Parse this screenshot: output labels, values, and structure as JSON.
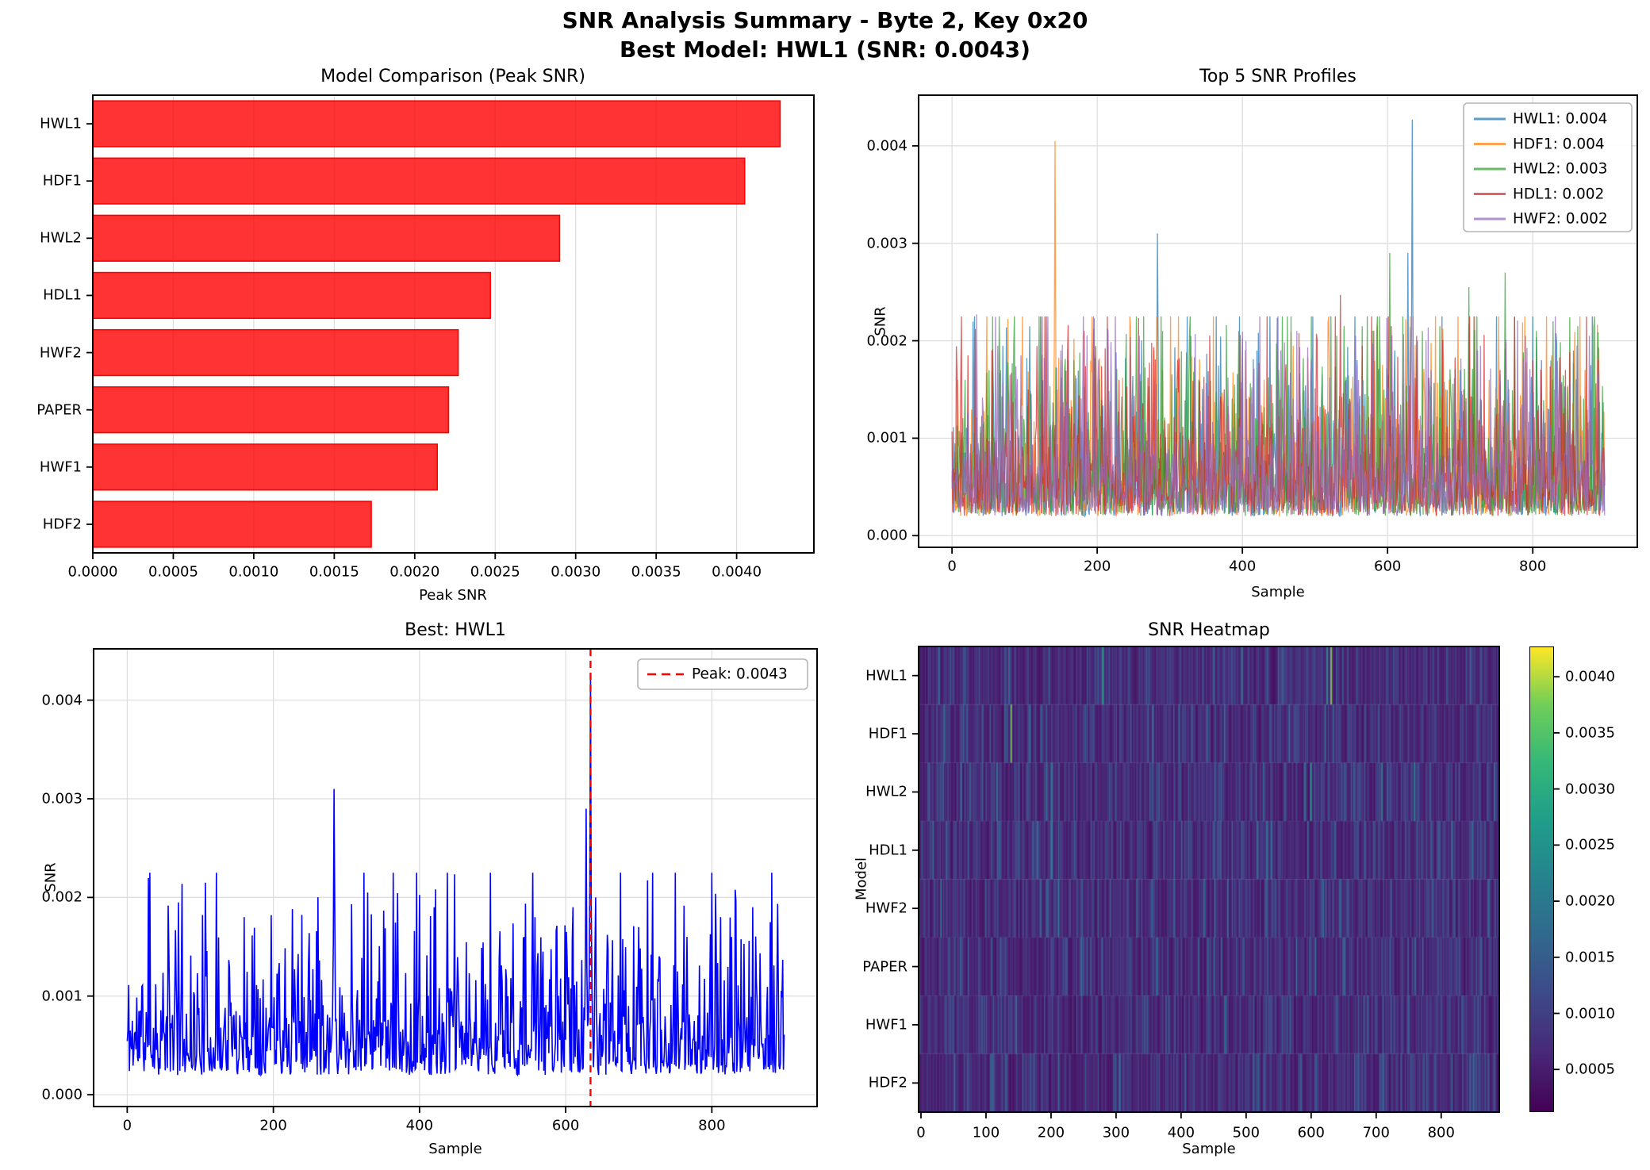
{
  "figure": {
    "title_line1": "SNR Analysis Summary - Byte 2, Key 0x20",
    "title_line2": "Best Model: HWL1 (SNR: 0.0043)",
    "background": "#ffffff",
    "grid_color": "#dcdcdc",
    "spine_color": "#000000"
  },
  "chart_data": [
    {
      "id": "model-comparison",
      "type": "bar",
      "orientation": "horizontal",
      "title": "Model Comparison (Peak SNR)",
      "xlabel": "Peak SNR",
      "categories": [
        "HWL1",
        "HDF1",
        "HWL2",
        "HDL1",
        "HWF2",
        "PAPER",
        "HWF1",
        "HDF2"
      ],
      "values": [
        0.00427,
        0.00405,
        0.0029,
        0.00247,
        0.00227,
        0.00221,
        0.00214,
        0.00173
      ],
      "xlim": [
        0,
        0.00448
      ],
      "xticks": [
        0,
        0.0005,
        0.001,
        0.0015,
        0.002,
        0.0025,
        0.003,
        0.0035,
        0.004
      ],
      "xtick_labels": [
        "0.0000",
        "0.0005",
        "0.0010",
        "0.0015",
        "0.0020",
        "0.0025",
        "0.0030",
        "0.0035",
        "0.0040"
      ],
      "bar_color": "#ff0000",
      "bar_alpha": 0.8,
      "bar_edge_color": "#ff0000",
      "grid": "x"
    },
    {
      "id": "top5-profiles",
      "type": "line",
      "title": "Top 5 SNR Profiles",
      "xlabel": "Sample",
      "ylabel": "SNR",
      "n_samples": 900,
      "xlim": [
        -46,
        944
      ],
      "ylim": [
        -0.00012,
        0.00452
      ],
      "xticks": [
        0,
        200,
        400,
        600,
        800
      ],
      "yticks": [
        0,
        0.001,
        0.002,
        0.003,
        0.004
      ],
      "ytick_labels": [
        "0.000",
        "0.001",
        "0.002",
        "0.003",
        "0.004"
      ],
      "line_alpha": 0.72,
      "line_width": 1.3,
      "noise": {
        "base": 0.0002,
        "scale": 0.00048,
        "cap": 0.00205,
        "spike_chance": 0.012
      },
      "legend_position": "upper right",
      "series": [
        {
          "name": "HWL1",
          "label": "HWL1: 0.004",
          "color": "#1f77b4",
          "seed": 11,
          "peaks": {
            "31": 0.00225,
            "70": 0.00195,
            "160": 0.0018,
            "283": 0.0031,
            "420": 0.0019,
            "497": 0.00225,
            "558": 0.0018,
            "610": 0.0019,
            "628": 0.0029,
            "634": 0.00427,
            "641": 0.002,
            "700": 0.0017,
            "766": 0.0016,
            "812": 0.0018,
            "856": 0.0019,
            "880": 0.00175
          }
        },
        {
          "name": "HDF1",
          "label": "HDF1: 0.004",
          "color": "#ff7f0e",
          "seed": 22,
          "peaks": {
            "8": 0.0016,
            "142": 0.00405,
            "150": 0.0018,
            "196": 0.00185,
            "203": 0.00182,
            "290": 0.0017,
            "360": 0.00225,
            "430": 0.0016,
            "470": 0.00195,
            "520": 0.0015,
            "600": 0.0014,
            "680": 0.0015,
            "740": 0.0016,
            "830": 0.0015,
            "872": 0.0017
          }
        },
        {
          "name": "HWL2",
          "label": "HWL2: 0.003",
          "color": "#2ca02c",
          "seed": 33,
          "peaks": {
            "18": 0.0016,
            "65": 0.00225,
            "85": 0.00195,
            "120": 0.00225,
            "196": 0.00223,
            "240": 0.00207,
            "290": 0.0021,
            "340": 0.0016,
            "395": 0.0021,
            "450": 0.0017,
            "530": 0.00205,
            "603": 0.0029,
            "648": 0.0021,
            "672": 0.00215,
            "712": 0.00255,
            "762": 0.0027,
            "805": 0.0021,
            "828": 0.0022,
            "862": 0.00215,
            "885": 0.00225
          }
        },
        {
          "name": "HDL1",
          "label": "HDL1: 0.002",
          "color": "#d62728",
          "seed": 44,
          "peaks": {
            "12": 0.0016,
            "22": 0.00185,
            "55": 0.0019,
            "105": 0.0015,
            "182": 0.0021,
            "246": 0.00185,
            "310": 0.0016,
            "375": 0.0015,
            "440": 0.00155,
            "535": 0.00247,
            "565": 0.00195,
            "640": 0.00205,
            "705": 0.0015,
            "755": 0.0017,
            "800": 0.0018,
            "845": 0.0017,
            "890": 0.0018
          }
        },
        {
          "name": "HWF2",
          "label": "HWF2: 0.002",
          "color": "#9467bd",
          "seed": 55,
          "peaks": {
            "34": 0.00227,
            "95": 0.00185,
            "150": 0.0019,
            "215": 0.0021,
            "258": 0.00205,
            "335": 0.00207,
            "405": 0.002,
            "475": 0.0021,
            "556": 0.00205,
            "580": 0.00197,
            "622": 0.00207,
            "660": 0.0017,
            "728": 0.00195,
            "790": 0.00205,
            "838": 0.0016,
            "878": 0.00205
          }
        }
      ]
    },
    {
      "id": "best-profile",
      "type": "line",
      "title": "Best: HWL1",
      "xlabel": "Sample",
      "ylabel": "SNR",
      "n_samples": 900,
      "xlim": [
        -46,
        944
      ],
      "ylim": [
        -0.00012,
        0.00452
      ],
      "xticks": [
        0,
        200,
        400,
        600,
        800
      ],
      "yticks": [
        0,
        0.001,
        0.002,
        0.003,
        0.004
      ],
      "ytick_labels": [
        "0.000",
        "0.001",
        "0.002",
        "0.003",
        "0.004"
      ],
      "line_alpha": 1.0,
      "line_width": 1.6,
      "noise": {
        "base": 0.0002,
        "scale": 0.00048,
        "cap": 0.00205,
        "spike_chance": 0.012
      },
      "series": [
        {
          "name": "HWL1",
          "label": "HWL1",
          "color": "#0000ff",
          "seed": 11,
          "peaks": {
            "31": 0.00225,
            "70": 0.00195,
            "160": 0.0018,
            "283": 0.0031,
            "420": 0.0019,
            "497": 0.00225,
            "558": 0.0018,
            "610": 0.0019,
            "628": 0.0029,
            "634": 0.00427,
            "641": 0.002,
            "700": 0.0017,
            "766": 0.0016,
            "812": 0.0018,
            "856": 0.0019,
            "880": 0.00175
          }
        }
      ],
      "peak_line": {
        "x": 634,
        "value": 0.0043,
        "label": "Peak: 0.0043",
        "color": "#ff0000",
        "style": "dashed"
      }
    },
    {
      "id": "snr-heatmap",
      "type": "heatmap",
      "title": "SNR Heatmap",
      "xlabel": "Sample",
      "ylabel": "Model",
      "rows": [
        "HWL1",
        "HDF1",
        "HWL2",
        "HDL1",
        "HWF2",
        "PAPER",
        "HWF1",
        "HDF2"
      ],
      "n_samples": 893,
      "xticks": [
        0,
        100,
        200,
        300,
        400,
        500,
        600,
        700,
        800
      ],
      "vmin": 0.00012,
      "vmax": 0.00427,
      "colormap": "viridis",
      "colormap_stops": [
        [
          0,
          "#440154"
        ],
        [
          0.125,
          "#482878"
        ],
        [
          0.25,
          "#3e4989"
        ],
        [
          0.375,
          "#31688e"
        ],
        [
          0.5,
          "#26828e"
        ],
        [
          0.625,
          "#1f9e89"
        ],
        [
          0.75,
          "#35b779"
        ],
        [
          0.875,
          "#6ece58"
        ],
        [
          1,
          "#fde725"
        ]
      ],
      "colorbar_ticks": [
        0.0005,
        0.001,
        0.0015,
        0.002,
        0.0025,
        0.003,
        0.0035,
        0.004
      ],
      "colorbar_tick_labels": [
        "0.0005",
        "0.0010",
        "0.0015",
        "0.0020",
        "0.0025",
        "0.0030",
        "0.0035",
        "0.0040"
      ],
      "noise": {
        "base": 0.00028,
        "scale": 0.00042,
        "cap": 0.00225,
        "streak_chance": 0.06
      },
      "row_seeds": [
        101,
        202,
        303,
        404,
        505,
        606,
        707,
        808
      ],
      "row_peaks": [
        {
          "31": 0.00225,
          "283": 0.0031,
          "497": 0.00225,
          "628": 0.0029,
          "634": 0.00427,
          "812": 0.0018
        },
        {
          "142": 0.00405,
          "196": 0.00185,
          "360": 0.00225,
          "470": 0.00195,
          "740": 0.0016
        },
        {
          "65": 0.00225,
          "120": 0.00225,
          "196": 0.00223,
          "530": 0.00205,
          "603": 0.0029,
          "712": 0.00255,
          "762": 0.0027,
          "885": 0.00225
        },
        {
          "22": 0.00185,
          "182": 0.0021,
          "535": 0.00247,
          "640": 0.00205,
          "800": 0.0018
        },
        {
          "34": 0.00227,
          "215": 0.0021,
          "335": 0.00207,
          "475": 0.0021,
          "622": 0.00207,
          "790": 0.00205
        },
        {
          "112": 0.0019,
          "250": 0.0022,
          "430": 0.0019,
          "610": 0.002,
          "775": 0.0018
        },
        {
          "150": 0.00214,
          "380": 0.0018,
          "540": 0.0017,
          "690": 0.002,
          "860": 0.0018
        },
        {
          "75": 0.00173,
          "300": 0.0016,
          "520": 0.0016,
          "820": 0.0016
        }
      ]
    }
  ]
}
